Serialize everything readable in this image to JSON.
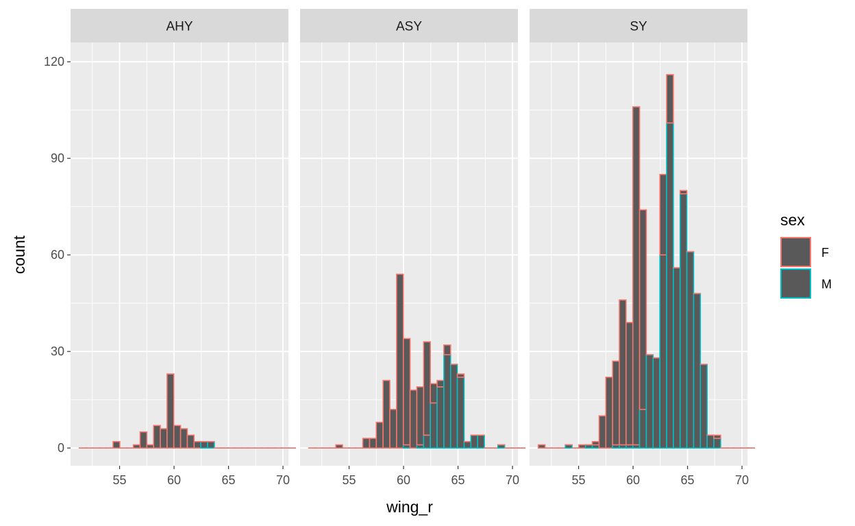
{
  "chart_data": {
    "type": "bar",
    "subtype": "faceted stacked histogram",
    "xlabel": "wing_r",
    "ylabel": "count",
    "xlim": [
      50.5,
      70.5
    ],
    "ylim": [
      -5.5,
      126
    ],
    "x_ticks": [
      55,
      60,
      65,
      70
    ],
    "x_tick_labels": [
      "55",
      "60",
      "65",
      "70"
    ],
    "y_ticks": [
      0,
      30,
      60,
      90,
      120
    ],
    "y_tick_labels": [
      "0",
      "30",
      "60",
      "90",
      "120"
    ],
    "grid": true,
    "bin_width": 0.62,
    "bin_start": 51.3,
    "colors": {
      "panel_background": "#ebebeb",
      "strip_background": "#d9d9d9",
      "grid": "#ffffff",
      "bar_fill": "#595959",
      "F": "#f8766d",
      "M": "#00bfc4"
    },
    "legend": {
      "title": "sex",
      "position": "right",
      "entries": [
        "F",
        "M"
      ]
    },
    "panels": [
      {
        "label": "AHY",
        "series": [
          {
            "name": "M",
            "values": [
              0,
              0,
              0,
              0,
              0,
              0,
              0,
              0,
              0,
              0,
              0,
              0,
              0,
              0,
              0,
              0,
              0,
              0,
              2,
              2,
              0,
              0,
              0,
              0,
              0,
              0,
              0,
              0,
              0,
              0,
              0,
              0
            ]
          },
          {
            "name": "F",
            "values": [
              0,
              0,
              0,
              0,
              0,
              2,
              0,
              0,
              1,
              5,
              1,
              7,
              6,
              23,
              7,
              6,
              4,
              2,
              0,
              0,
              0,
              0,
              0,
              0,
              0,
              0,
              0,
              0,
              0,
              0,
              0,
              0
            ]
          }
        ]
      },
      {
        "label": "ASY",
        "series": [
          {
            "name": "M",
            "values": [
              0,
              0,
              0,
              0,
              0,
              0,
              0,
              0,
              0,
              0,
              0,
              0,
              0,
              0,
              1,
              0,
              1,
              4,
              14,
              19,
              29,
              26,
              22,
              2,
              4,
              4,
              0,
              0,
              1,
              0,
              0,
              0
            ]
          },
          {
            "name": "F",
            "values": [
              0,
              0,
              0,
              0,
              1,
              0,
              0,
              0,
              3,
              3,
              8,
              21,
              12,
              54,
              33,
              18,
              18,
              29,
              6,
              2,
              3,
              0,
              1,
              0,
              0,
              0,
              0,
              0,
              0,
              0,
              0,
              0
            ]
          }
        ]
      },
      {
        "label": "SY",
        "series": [
          {
            "name": "M",
            "values": [
              0,
              0,
              0,
              0,
              1,
              0,
              0,
              1,
              1,
              0,
              0,
              1,
              1,
              1,
              1,
              12,
              29,
              28,
              60,
              101,
              56,
              79,
              61,
              48,
              26,
              4,
              3,
              0,
              0,
              0,
              0,
              0
            ]
          },
          {
            "name": "F",
            "values": [
              1,
              0,
              0,
              0,
              0,
              0,
              1,
              0,
              1,
              10,
              22,
              26,
              45,
              38,
              105,
              62,
              0,
              0,
              25,
              15,
              0,
              1,
              0,
              0,
              0,
              0,
              1,
              0,
              0,
              0,
              0,
              0
            ]
          }
        ]
      }
    ]
  }
}
